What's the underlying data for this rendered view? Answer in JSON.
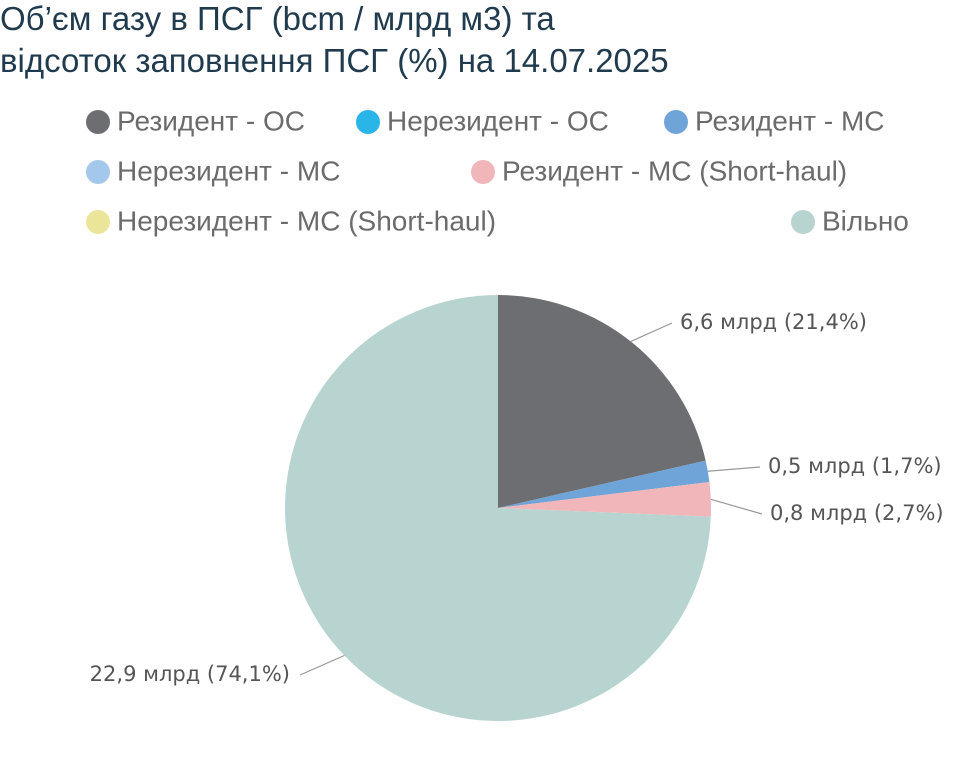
{
  "chart_data": {
    "type": "pie",
    "title": [
      "Об’єм газу в ПСГ (bcm / млрд м3) та",
      "відсоток заповнення ПСГ (%) на 14.07.2025"
    ],
    "categories": [
      "Резидент - ОС",
      "Нерезидент - ОС",
      "Резидент - МС",
      "Нерезидент - МС",
      "Резидент -  МС (Short-haul)",
      "Нерезидент -  МС (Short-haul)",
      "Вільно"
    ],
    "values": [
      6.6,
      0,
      0.5,
      0,
      0.8,
      0,
      22.9
    ],
    "value_labels": [
      "6,6 млрд (21,4%)",
      null,
      "0,5 млрд (1,7%)",
      null,
      "0,8 млрд (2,7%)",
      null,
      "22,9 млрд (74,1%)"
    ],
    "colors": [
      "#6d6e71",
      "#29b5e8",
      "#6fa4d8",
      "#a4c8ec",
      "#f0b6b9",
      "#ebe59a",
      "#b8d4d0"
    ]
  }
}
